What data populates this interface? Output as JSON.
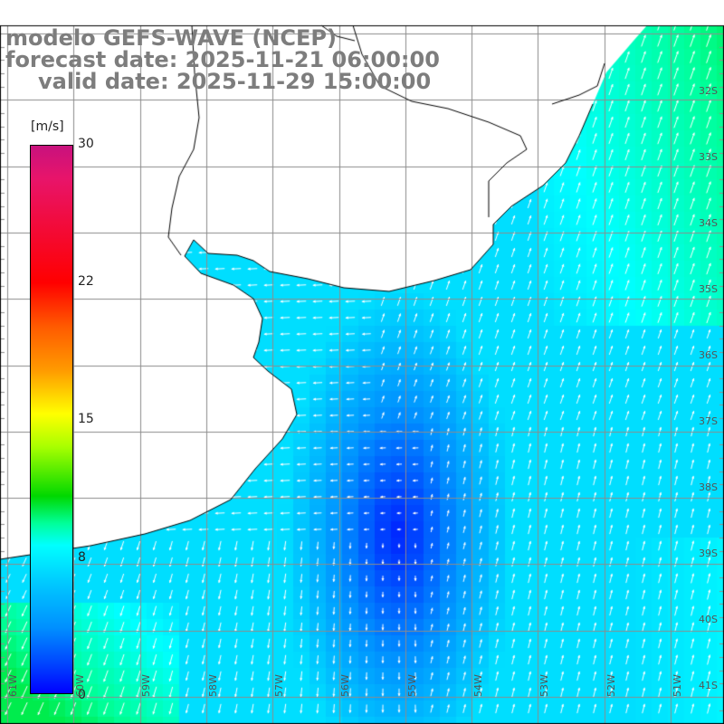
{
  "title": {
    "model": "modelo GEFS-WAVE (NCEP)",
    "forecast": "forecast date: 2025-11-21 06:00:00",
    "valid": "valid date: 2025-11-29 15:00:00"
  },
  "colorbar": {
    "unit": "[m/s]",
    "min": 0,
    "max": 30,
    "ticks": [
      "30",
      "22",
      "15",
      "8",
      "0"
    ]
  },
  "lat_labels": [
    "32S",
    "33S",
    "34S",
    "35S",
    "36S",
    "37S",
    "38S",
    "39S",
    "40S",
    "41S"
  ],
  "lon_labels": [
    "61W",
    "60W",
    "59W",
    "58W",
    "57W",
    "56W",
    "55W",
    "54W",
    "53W",
    "52W",
    "51W"
  ],
  "colors": {
    "land": "#ffffff",
    "grid": "#8c8c8c",
    "coast": "#000000",
    "arrows": "#ffffff"
  }
}
